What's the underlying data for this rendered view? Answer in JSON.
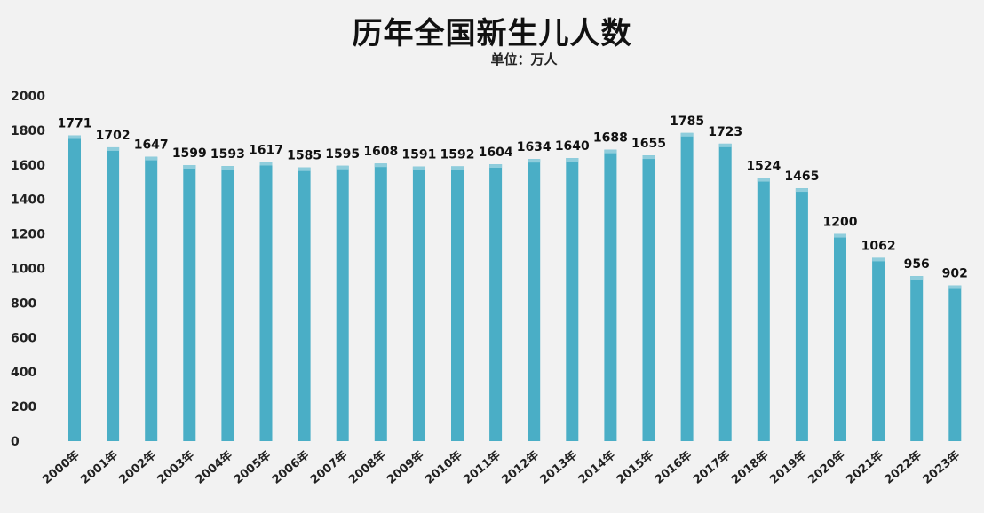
{
  "chart_data": {
    "type": "bar",
    "title": "历年全国新生儿人数",
    "subtitle": "单位：万人",
    "categories": [
      "2000年",
      "2001年",
      "2002年",
      "2003年",
      "2004年",
      "2005年",
      "2006年",
      "2007年",
      "2008年",
      "2009年",
      "2010年",
      "2011年",
      "2012年",
      "2013年",
      "2014年",
      "2015年",
      "2016年",
      "2017年",
      "2018年",
      "2019年",
      "2020年",
      "2021年",
      "2022年",
      "2023年"
    ],
    "values": [
      1771,
      1702,
      1647,
      1599,
      1593,
      1617,
      1585,
      1595,
      1608,
      1591,
      1592,
      1604,
      1634,
      1640,
      1688,
      1655,
      1785,
      1723,
      1524,
      1465,
      1200,
      1062,
      956,
      902
    ],
    "yticks": [
      0,
      200,
      400,
      600,
      800,
      1000,
      1200,
      1400,
      1600,
      1800,
      2000
    ],
    "ylim": [
      0,
      2000
    ],
    "grid": false,
    "bar_color": "#4aaec6",
    "bar_shade": "#8fcddc"
  }
}
